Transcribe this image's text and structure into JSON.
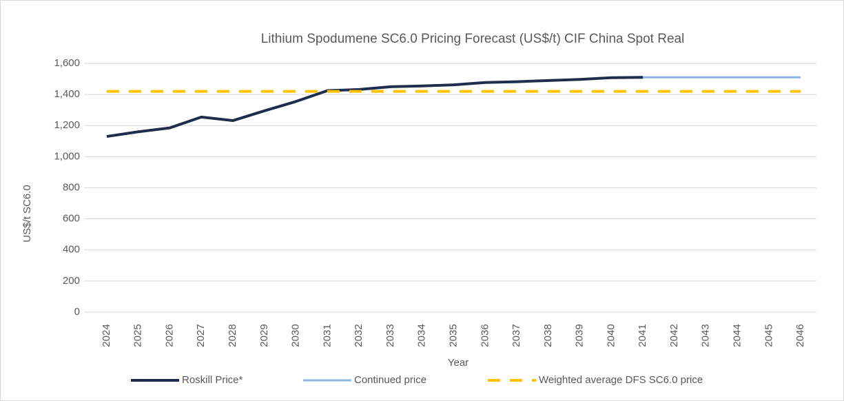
{
  "chart_data": {
    "type": "line",
    "title": "Lithium  Spodumene  SC6.0 Pricing Forecast (US$/t)  CIF China  Spot  Real",
    "x_label": "Year",
    "y_label": "US$/t SC6.0",
    "categories": [
      "2024",
      "2025",
      "2026",
      "2027",
      "2028",
      "2029",
      "2030",
      "2031",
      "2032",
      "2033",
      "2034",
      "2035",
      "2036",
      "2037",
      "2038",
      "2039",
      "2040",
      "2041",
      "2042",
      "2043",
      "2044",
      "2045",
      "2046"
    ],
    "series": [
      {
        "name": "Roskill Price*",
        "color": "#1f2d4e",
        "values": [
          1130,
          1160,
          1185,
          1255,
          1232,
          1295,
          1355,
          1425,
          1432,
          1450,
          1455,
          1462,
          1477,
          1482,
          1490,
          1497,
          1508,
          1510,
          null,
          null,
          null,
          null,
          null
        ]
      },
      {
        "name": "Continued price",
        "color": "#8db4e2",
        "values": [
          null,
          null,
          null,
          null,
          null,
          null,
          null,
          null,
          null,
          null,
          null,
          null,
          null,
          null,
          null,
          null,
          null,
          1510,
          1510,
          1510,
          1510,
          1510,
          1510
        ]
      },
      {
        "name": "Weighted average DFS SC6.0 price",
        "color": "#ffc000",
        "dashed": true,
        "values": [
          1420,
          1420,
          1420,
          1420,
          1420,
          1420,
          1420,
          1420,
          1420,
          1420,
          1420,
          1420,
          1420,
          1420,
          1420,
          1420,
          1420,
          1420,
          1420,
          1420,
          1420,
          1420,
          1420
        ]
      }
    ],
    "ylim": [
      0,
      1600
    ],
    "yticks": [
      0,
      200,
      400,
      600,
      800,
      {
        "value": 1000,
        "label": "1,000"
      },
      {
        "value": 1200,
        "label": "1,200"
      },
      {
        "value": 1400,
        "label": "1,400"
      },
      {
        "value": 1600,
        "label": "1,600"
      }
    ],
    "grid": true,
    "legend": "bottom"
  }
}
